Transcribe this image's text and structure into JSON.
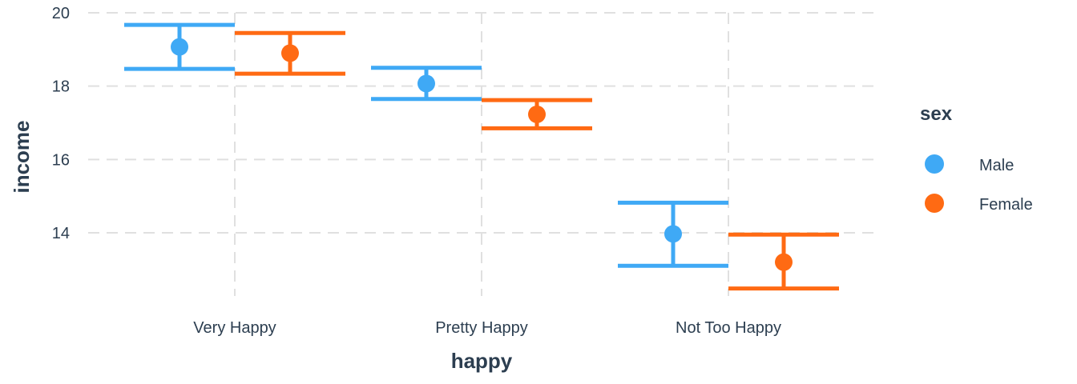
{
  "chart_data": {
    "type": "scatter",
    "xlabel": "happy",
    "ylabel": "income",
    "categories": [
      "Very Happy",
      "Pretty Happy",
      "Not Too Happy"
    ],
    "ylim": [
      12.0,
      20.2
    ],
    "yticks": [
      14,
      16,
      18,
      20
    ],
    "grid": true,
    "legend": {
      "title": "sex",
      "position": "right"
    },
    "series": [
      {
        "name": "Male",
        "color": "#3fa9f5",
        "values": [
          19.07,
          18.07,
          13.97
        ],
        "lower": [
          18.47,
          17.65,
          13.1
        ],
        "upper": [
          19.67,
          18.5,
          14.82
        ]
      },
      {
        "name": "Female",
        "color": "#ff6a13",
        "values": [
          18.9,
          17.23,
          13.2
        ],
        "lower": [
          18.34,
          16.85,
          12.48
        ],
        "upper": [
          19.45,
          17.62,
          13.95
        ]
      }
    ],
    "error_bars": true,
    "colors": {
      "grid": "#e0e0e0",
      "text": "#2c3e50"
    }
  }
}
